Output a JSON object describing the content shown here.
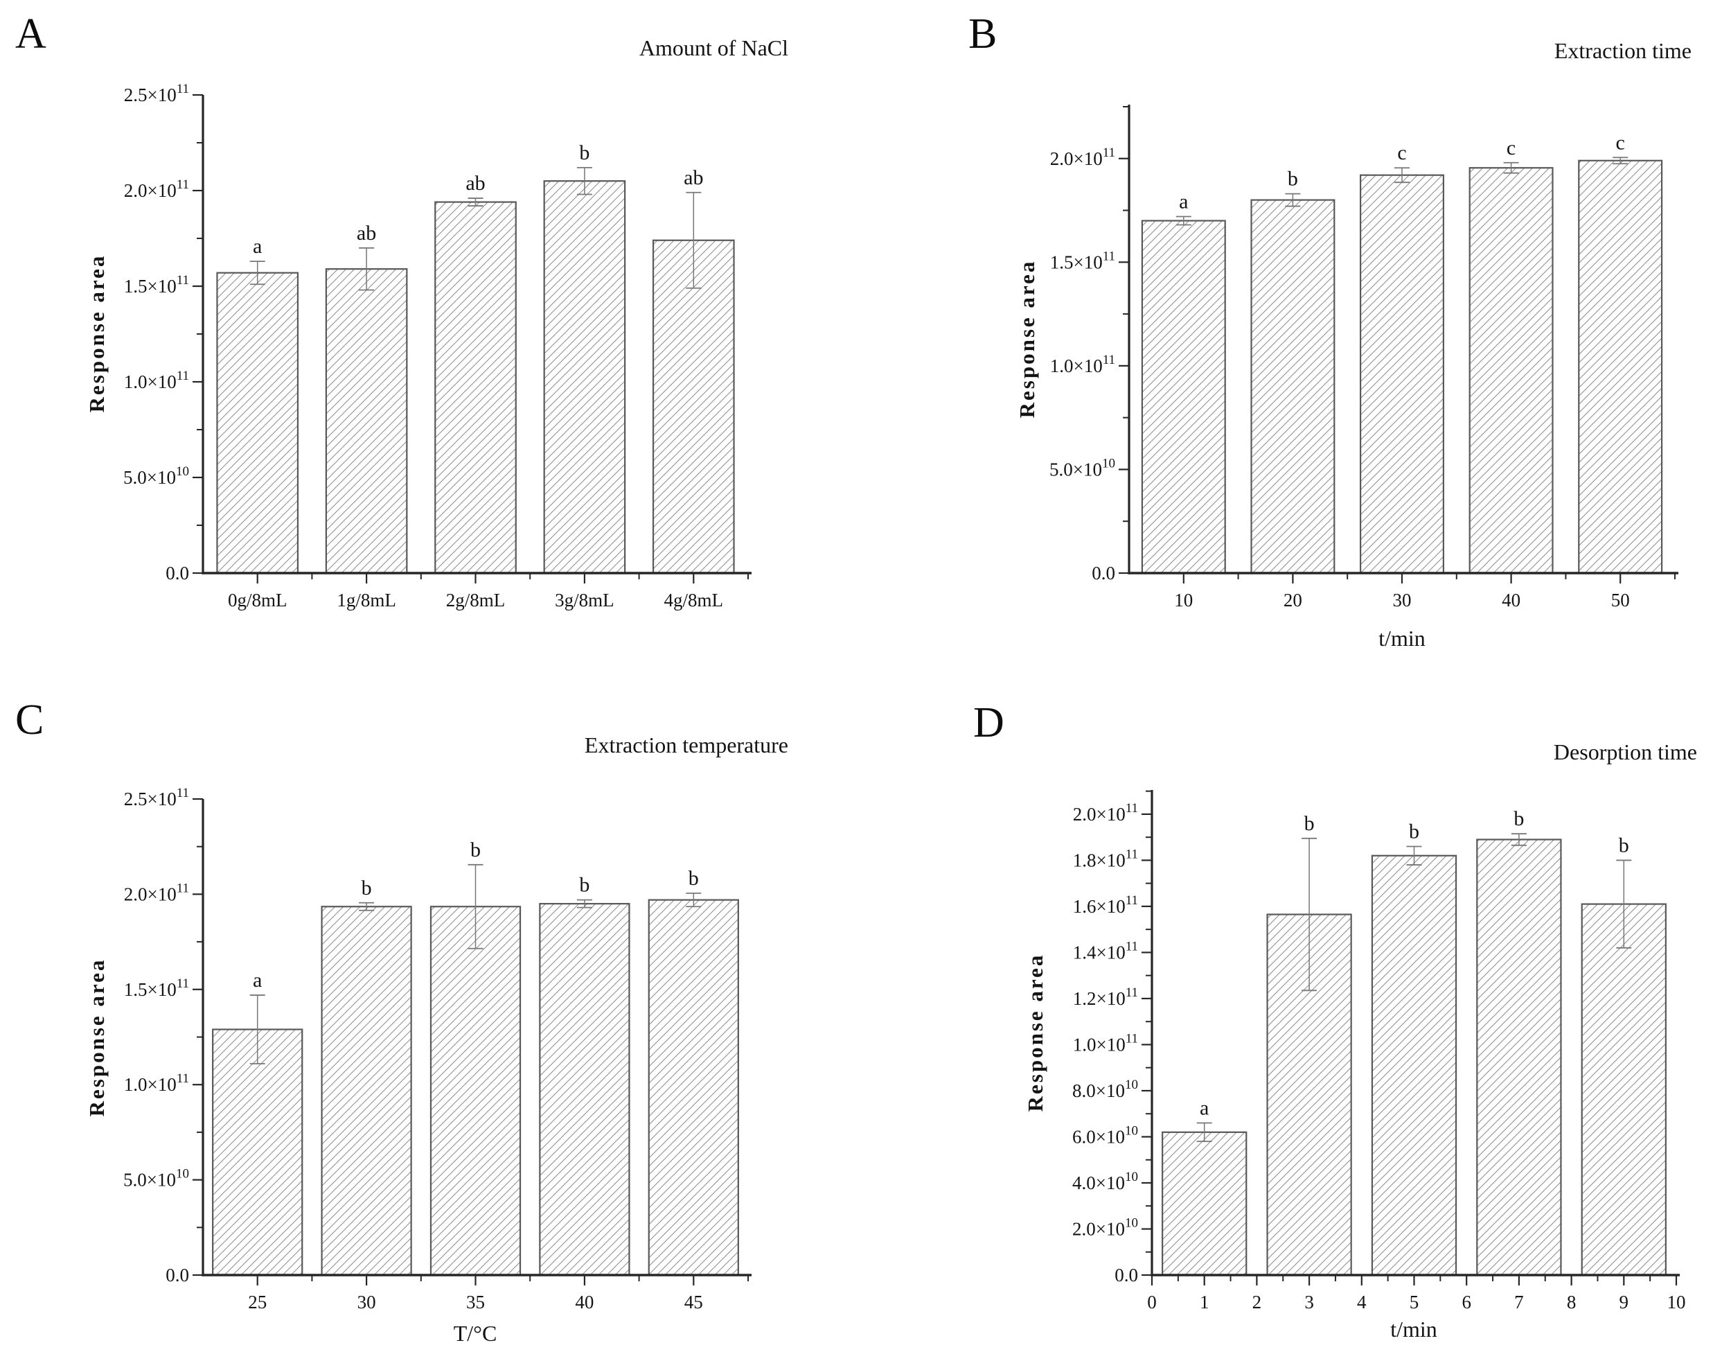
{
  "style": {
    "background": "#ffffff",
    "axis_color": "#262626",
    "text_color": "#141414",
    "bar_edge_color": "#585858",
    "hatch_color": "#909090",
    "error_bar_color": "#777777"
  },
  "chart_data": [
    {
      "panel_letter": "A",
      "type": "bar",
      "title": "Amount of NaCl",
      "ylabel": "Response area",
      "xlabel": "",
      "x_mode": "categorical",
      "categories": [
        "0g/8mL",
        "1g/8mL",
        "2g/8mL",
        "3g/8mL",
        "4g/8mL"
      ],
      "values": [
        157000000000.0,
        159000000000.0,
        194000000000.0,
        205000000000.0,
        174000000000.0
      ],
      "errors": [
        6000000000.0,
        11000000000.0,
        2000000000.0,
        7000000000.0,
        25000000000.0
      ],
      "sig_letters": [
        "a",
        "ab",
        "ab",
        "b",
        "ab"
      ],
      "yticks": [
        {
          "v": 0,
          "label": "0.0"
        },
        {
          "v": 50000000000.0,
          "label": "5.0×10^10"
        },
        {
          "v": 100000000000.0,
          "label": "1.0×10^11"
        },
        {
          "v": 150000000000.0,
          "label": "1.5×10^11"
        },
        {
          "v": 200000000000.0,
          "label": "2.0×10^11"
        },
        {
          "v": 250000000000.0,
          "label": "2.5×10^11"
        }
      ],
      "ylim": [
        0,
        250000000000.0
      ],
      "grid": false,
      "legend": null
    },
    {
      "panel_letter": "B",
      "type": "bar",
      "title": "Extraction time",
      "ylabel": "Response area",
      "xlabel": "t/min",
      "x_mode": "categorical",
      "categories": [
        "10",
        "20",
        "30",
        "40",
        "50"
      ],
      "values": [
        170000000000.0,
        180000000000.0,
        192000000000.0,
        195500000000.0,
        199000000000.0
      ],
      "errors": [
        2000000000.0,
        3000000000.0,
        3500000000.0,
        2500000000.0,
        1500000000.0
      ],
      "sig_letters": [
        "a",
        "b",
        "c",
        "c",
        "c"
      ],
      "yticks": [
        {
          "v": 0,
          "label": "0.0"
        },
        {
          "v": 50000000000.0,
          "label": "5.0×10^10"
        },
        {
          "v": 100000000000.0,
          "label": "1.0×10^11"
        },
        {
          "v": 150000000000.0,
          "label": "1.5×10^11"
        },
        {
          "v": 200000000000.0,
          "label": "2.0×10^11"
        }
      ],
      "ylim": [
        0,
        226000000000.0
      ],
      "grid": false,
      "legend": null
    },
    {
      "panel_letter": "C",
      "type": "bar",
      "title": "Extraction temperature",
      "ylabel": "Response area",
      "xlabel": "T/°C",
      "x_mode": "categorical",
      "categories": [
        "25",
        "30",
        "35",
        "40",
        "45"
      ],
      "values": [
        129000000000.0,
        193500000000.0,
        193500000000.0,
        195000000000.0,
        197000000000.0
      ],
      "errors": [
        18000000000.0,
        2000000000.0,
        22000000000.0,
        2000000000.0,
        3500000000.0
      ],
      "sig_letters": [
        "a",
        "b",
        "b",
        "b",
        "b"
      ],
      "yticks": [
        {
          "v": 0,
          "label": "0.0"
        },
        {
          "v": 50000000000.0,
          "label": "5.0×10^10"
        },
        {
          "v": 100000000000.0,
          "label": "1.0×10^11"
        },
        {
          "v": 150000000000.0,
          "label": "1.5×10^11"
        },
        {
          "v": 200000000000.0,
          "label": "2.0×10^11"
        },
        {
          "v": 250000000000.0,
          "label": "2.5×10^11"
        }
      ],
      "ylim": [
        0,
        250000000000.0
      ],
      "grid": false,
      "legend": null
    },
    {
      "panel_letter": "D",
      "type": "bar",
      "title": "Desorption time",
      "ylabel": "Response area",
      "xlabel": "t/min",
      "x_mode": "numeric",
      "xlim": [
        0,
        10
      ],
      "x_major_ticks": [
        "0",
        "1",
        "2",
        "3",
        "4",
        "5",
        "6",
        "7",
        "8",
        "9",
        "10"
      ],
      "bar_centers": [
        1,
        3,
        5,
        7,
        9
      ],
      "bar_width_units": 1.6,
      "values": [
        62000000000.0,
        156500000000.0,
        182000000000.0,
        189000000000.0,
        161000000000.0
      ],
      "errors": [
        4000000000.0,
        33000000000.0,
        4000000000.0,
        2500000000.0,
        19000000000.0
      ],
      "sig_letters": [
        "a",
        "b",
        "b",
        "b",
        "b"
      ],
      "yticks": [
        {
          "v": 0,
          "label": "0.0"
        },
        {
          "v": 20000000000.0,
          "label": "2.0×10^10"
        },
        {
          "v": 40000000000.0,
          "label": "4.0×10^10"
        },
        {
          "v": 60000000000.0,
          "label": "6.0×10^10"
        },
        {
          "v": 80000000000.0,
          "label": "8.0×10^10"
        },
        {
          "v": 100000000000.0,
          "label": "1.0×10^11"
        },
        {
          "v": 120000000000.0,
          "label": "1.2×10^11"
        },
        {
          "v": 140000000000.0,
          "label": "1.4×10^11"
        },
        {
          "v": 160000000000.0,
          "label": "1.6×10^11"
        },
        {
          "v": 180000000000.0,
          "label": "1.8×10^11"
        },
        {
          "v": 200000000000.0,
          "label": "2.0×10^11"
        }
      ],
      "ylim": [
        0,
        210500000000.0
      ],
      "grid": false,
      "legend": null
    }
  ]
}
